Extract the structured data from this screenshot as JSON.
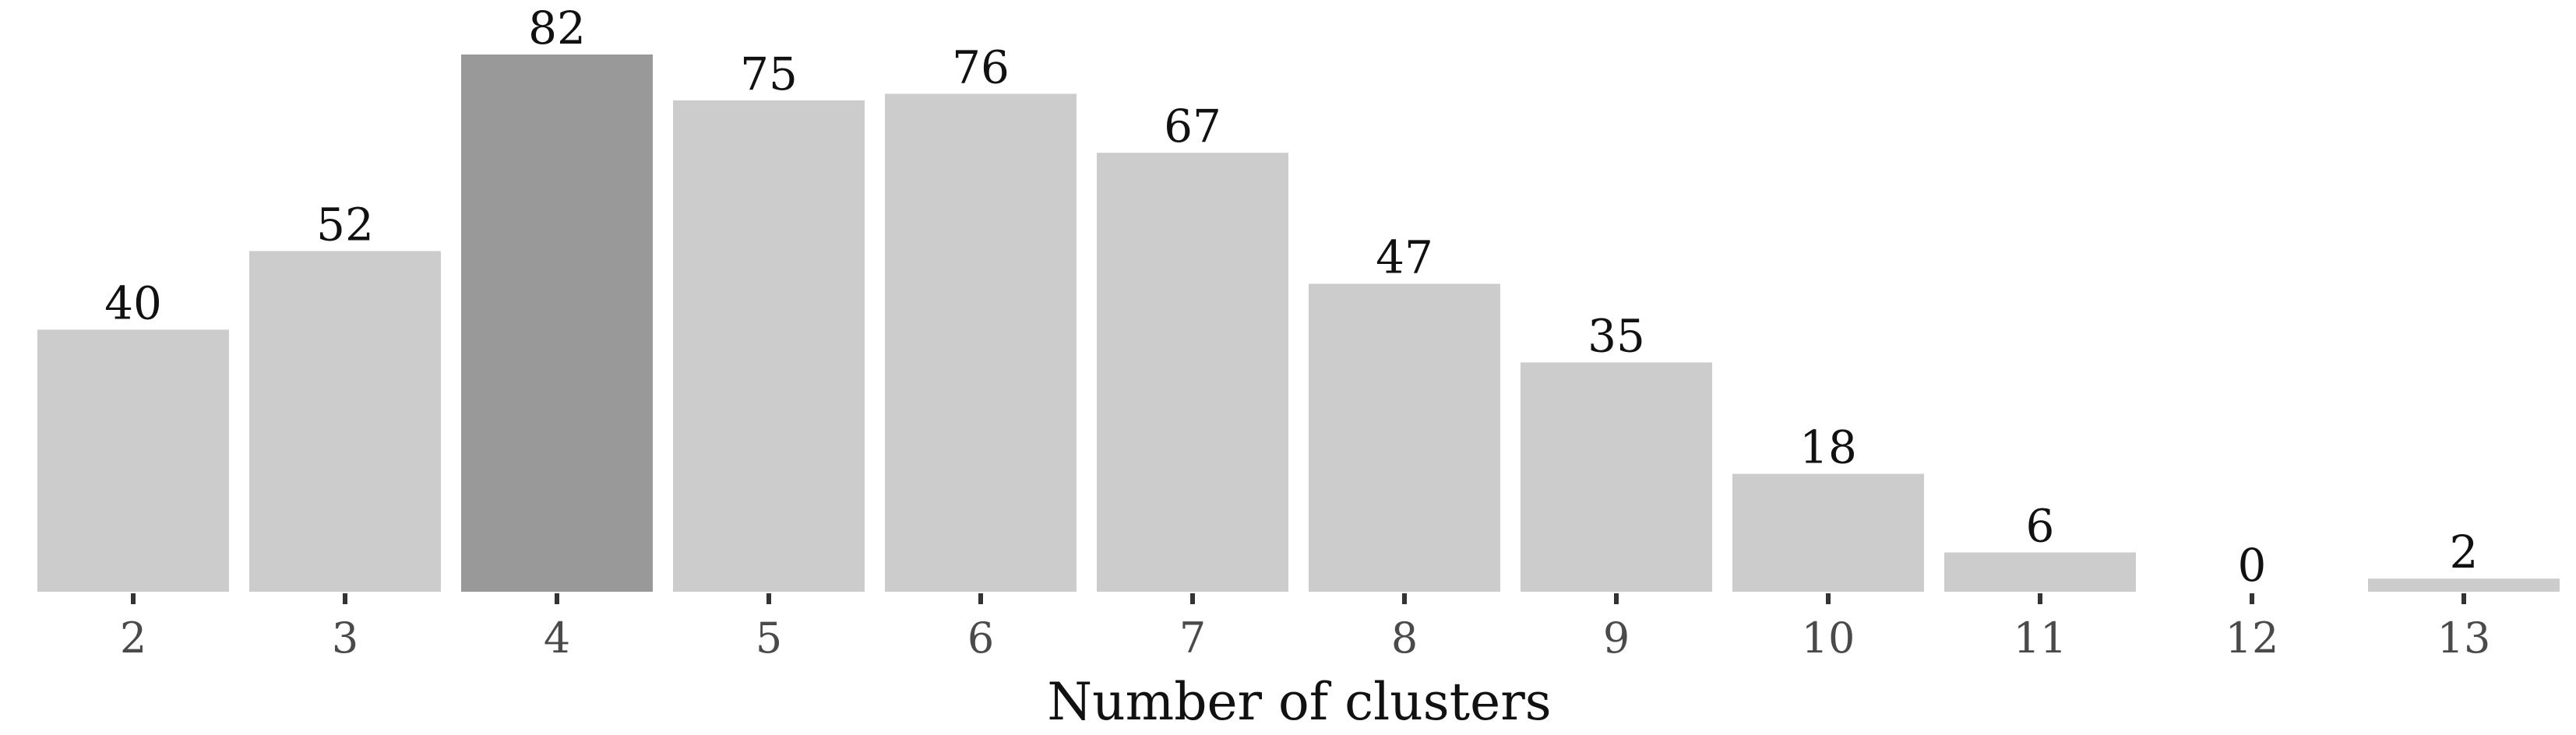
{
  "chart_data": {
    "type": "bar",
    "categories": [
      "2",
      "3",
      "4",
      "5",
      "6",
      "7",
      "8",
      "9",
      "10",
      "11",
      "12",
      "13"
    ],
    "values": [
      40,
      52,
      82,
      75,
      76,
      67,
      47,
      35,
      18,
      6,
      0,
      2
    ],
    "highlight_index": 2,
    "title": "",
    "xlabel": "Number of clusters",
    "ylabel": "",
    "ylim": [
      0,
      82
    ],
    "grid": false,
    "legend": "none",
    "colors": {
      "bar": "#cccccc",
      "bar_highlight": "#999999",
      "tick": "#333333"
    }
  }
}
